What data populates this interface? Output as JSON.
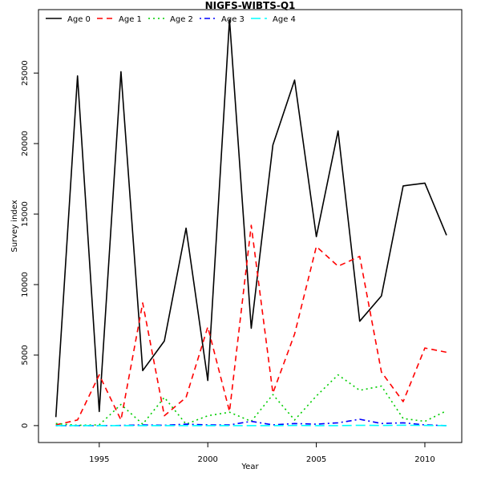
{
  "chart_data": {
    "type": "line",
    "title": "NIGFS-WIBTS-Q1",
    "xlabel": "Year",
    "ylabel": "Survey index",
    "xlim": [
      1992.2,
      2011.7
    ],
    "ylim": [
      -1200,
      29500
    ],
    "xticks": [
      1995,
      2000,
      2005,
      2010
    ],
    "yticks": [
      0,
      5000,
      10000,
      15000,
      20000,
      25000
    ],
    "xtick_labels": [
      "1995",
      "2000",
      "2005",
      "2010"
    ],
    "ytick_labels": [
      "0",
      "5000",
      "10000",
      "15000",
      "20000",
      "25000"
    ],
    "legend_position": "top-left",
    "grid": false,
    "x": [
      1993,
      1994,
      1995,
      1996,
      1997,
      1998,
      1999,
      2000,
      2001,
      2002,
      2003,
      2004,
      2005,
      2006,
      2007,
      2008,
      2009,
      2010,
      2011
    ],
    "series": [
      {
        "name": "Age 0",
        "color": "#000000",
        "dash": "solid",
        "values": [
          600,
          24800,
          1000,
          25100,
          3900,
          6000,
          14000,
          3200,
          28800,
          6900,
          19900,
          24500,
          13400,
          20900,
          7400,
          9200,
          17000,
          17200,
          13500
        ]
      },
      {
        "name": "Age 1",
        "color": "#ff0000",
        "dash": "dashed",
        "values": [
          50,
          400,
          3600,
          400,
          8700,
          700,
          2000,
          7000,
          1000,
          14200,
          2300,
          6500,
          12700,
          11300,
          12000,
          3800,
          1700,
          5500,
          5200
        ]
      },
      {
        "name": "Age 2",
        "color": "#00cd00",
        "dash": "dotted",
        "values": [
          150,
          20,
          50,
          1500,
          100,
          2000,
          100,
          700,
          950,
          300,
          2200,
          400,
          2100,
          3600,
          2500,
          2800,
          500,
          300,
          1050
        ]
      },
      {
        "name": "Age 3",
        "color": "#0000ff",
        "dash": "dotdash",
        "values": [
          0,
          0,
          0,
          10,
          50,
          20,
          100,
          50,
          50,
          300,
          50,
          150,
          100,
          200,
          450,
          150,
          200,
          50,
          0
        ]
      },
      {
        "name": "Age 4",
        "color": "#00ffff",
        "dash": "longdash",
        "values": [
          0,
          0,
          0,
          0,
          0,
          0,
          0,
          0,
          0,
          0,
          0,
          10,
          0,
          0,
          20,
          10,
          30,
          10,
          0
        ]
      }
    ]
  }
}
